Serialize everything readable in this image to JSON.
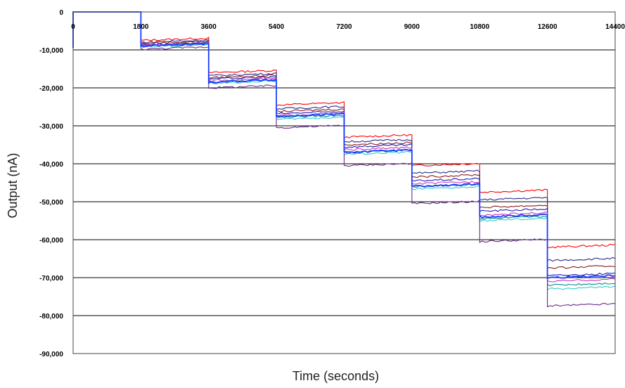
{
  "chart_data": {
    "type": "line",
    "title": "",
    "xlabel": "Time (seconds)",
    "ylabel": "Output (nA)",
    "xlim": [
      0,
      14400
    ],
    "ylim": [
      -90000,
      0
    ],
    "x_ticks": [
      0,
      1800,
      3600,
      5400,
      7200,
      9000,
      10800,
      12600,
      14400
    ],
    "x_tick_labels": [
      "0",
      "1800",
      "3600",
      "5400",
      "7200",
      "9000",
      "10800",
      "12600",
      "14400"
    ],
    "y_ticks": [
      0,
      -10000,
      -20000,
      -30000,
      -40000,
      -50000,
      -60000,
      -70000,
      -80000,
      -90000
    ],
    "y_tick_labels": [
      "0",
      "-10,000",
      "-20,000",
      "-30,000",
      "-40,000",
      "-50,000",
      "-60,000",
      "-70,000",
      "-80,000",
      "-90,000"
    ],
    "x_tick_position": "top",
    "grid": "horizontal",
    "legend": "none",
    "step_edges": [
      1800,
      3600,
      5400,
      7200,
      9000,
      10800,
      12600
    ],
    "series": [
      {
        "color": "#ff0000",
        "values": [
          0,
          -7500,
          -16000,
          -24500,
          -33000,
          -40500,
          -47500,
          -62000
        ]
      },
      {
        "color": "#2b2b8c",
        "values": [
          0,
          -8000,
          -16800,
          -25500,
          -34200,
          -42500,
          -49500,
          -65500
        ]
      },
      {
        "color": "#8b1a1a",
        "values": [
          0,
          -8300,
          -17300,
          -26200,
          -35000,
          -43500,
          -51500,
          -67500
        ]
      },
      {
        "color": "#1f1fb0",
        "values": [
          0,
          -8600,
          -17700,
          -26800,
          -35600,
          -44500,
          -52500,
          -69500
        ]
      },
      {
        "color": "#cc33cc",
        "values": [
          0,
          -8800,
          -18100,
          -27300,
          -36300,
          -45300,
          -53500,
          -71000
        ]
      },
      {
        "color": "#008b8b",
        "values": [
          0,
          -9000,
          -18400,
          -27800,
          -36900,
          -46000,
          -54500,
          -72000
        ]
      },
      {
        "color": "#33cccc",
        "values": [
          0,
          -9200,
          -18800,
          -28300,
          -37500,
          -46700,
          -55000,
          -73000
        ]
      },
      {
        "color": "#6a2a8a",
        "values": [
          0,
          -9800,
          -20000,
          -30500,
          -40500,
          -50500,
          -60500,
          -77500
        ]
      },
      {
        "color": "#1a3dff",
        "values": [
          0,
          -9000,
          -18500,
          -27500,
          -37000,
          -46000,
          -54000,
          -70000
        ]
      }
    ]
  }
}
